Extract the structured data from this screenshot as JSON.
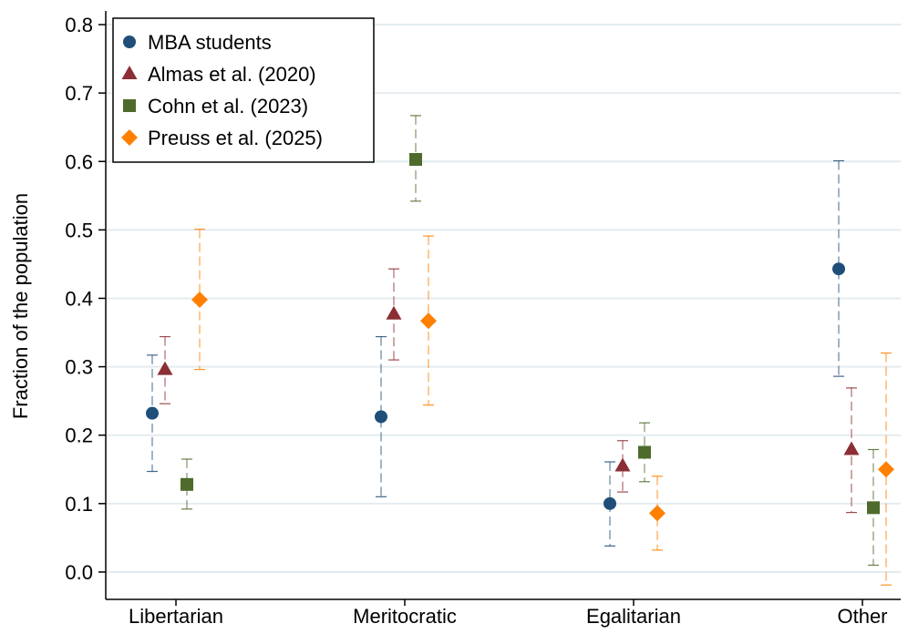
{
  "chart_data": {
    "type": "scatter",
    "ylabel": "Fraction of the population",
    "xlabel": "",
    "ylim": [
      -0.04,
      0.82
    ],
    "yticks": [
      0.0,
      0.1,
      0.2,
      0.3,
      0.4,
      0.5,
      0.6,
      0.7,
      0.8
    ],
    "ytick_labels": [
      "0.0",
      "0.1",
      "0.2",
      "0.3",
      "0.4",
      "0.5",
      "0.6",
      "0.7",
      "0.8"
    ],
    "grid": true,
    "legend_position": "top-left",
    "categories": [
      "Libertarian",
      "Meritocratic",
      "Egalitarian",
      "Other"
    ],
    "series": [
      {
        "name": "MBA students",
        "marker": "circle",
        "color": "#1f4e79",
        "values": [
          0.232,
          0.227,
          0.1,
          0.443
        ],
        "ci_low": [
          0.147,
          0.11,
          0.038,
          0.286
        ],
        "ci_high": [
          0.317,
          0.344,
          0.161,
          0.601
        ]
      },
      {
        "name": "Almas et al. (2020)",
        "marker": "triangle",
        "color": "#8b2f35",
        "values": [
          0.296,
          0.377,
          0.155,
          0.179
        ],
        "ci_low": [
          0.246,
          0.31,
          0.117,
          0.087
        ],
        "ci_high": [
          0.344,
          0.443,
          0.192,
          0.269
        ]
      },
      {
        "name": "Cohn et al. (2023)",
        "marker": "square",
        "color": "#4e6b2c",
        "values": [
          0.128,
          0.603,
          0.175,
          0.094
        ],
        "ci_low": [
          0.092,
          0.542,
          0.132,
          0.01
        ],
        "ci_high": [
          0.165,
          0.667,
          0.218,
          0.179
        ]
      },
      {
        "name": "Preuss et al. (2025)",
        "marker": "diamond",
        "color": "#ff8000",
        "values": [
          0.398,
          0.367,
          0.086,
          0.15
        ],
        "ci_low": [
          0.296,
          0.244,
          0.032,
          -0.019
        ],
        "ci_high": [
          0.501,
          0.491,
          0.14,
          0.32
        ]
      }
    ]
  }
}
